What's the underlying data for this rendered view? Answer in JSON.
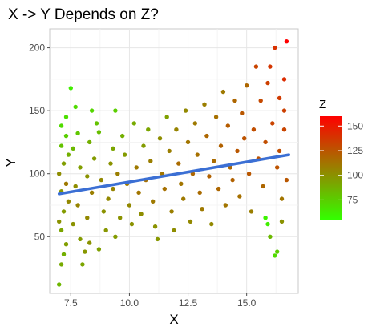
{
  "chart_data": {
    "type": "scatter",
    "title": "X -> Y Depends on Z?",
    "xlabel": "X",
    "ylabel": "Y",
    "xlim": [
      6.6,
      17.2
    ],
    "ylim": [
      5,
      215
    ],
    "x_ticks": [
      7.5,
      10.0,
      12.5,
      15.0
    ],
    "x_tick_labels": [
      "7.5",
      "10.0",
      "12.5",
      "15.0"
    ],
    "y_ticks": [
      50,
      100,
      150,
      200
    ],
    "y_tick_labels": [
      "50",
      "100",
      "150",
      "200"
    ],
    "grid": true,
    "legend": {
      "title": "Z",
      "placement": "right",
      "type": "colorbar",
      "range": [
        55,
        160
      ],
      "ticks": [
        75,
        100,
        125,
        150
      ],
      "tick_labels": [
        "75",
        "100",
        "125",
        "150"
      ],
      "colors": [
        "#33ff00",
        "#ff0000"
      ]
    },
    "trend_line": {
      "x": [
        7.0,
        16.8
      ],
      "y": [
        84,
        115
      ],
      "color": "#3b6fd4"
    },
    "points": [
      [
        7.0,
        12,
        85
      ],
      [
        7.1,
        28,
        90
      ],
      [
        7.2,
        36,
        88
      ],
      [
        7.3,
        44,
        95
      ],
      [
        7.1,
        55,
        92
      ],
      [
        7.0,
        62,
        100
      ],
      [
        7.2,
        70,
        96
      ],
      [
        7.4,
        78,
        104
      ],
      [
        7.1,
        86,
        98
      ],
      [
        7.3,
        92,
        110
      ],
      [
        7.0,
        100,
        102
      ],
      [
        7.2,
        108,
        95
      ],
      [
        7.4,
        115,
        88
      ],
      [
        7.1,
        122,
        80
      ],
      [
        7.3,
        130,
        75
      ],
      [
        7.1,
        138,
        70
      ],
      [
        7.3,
        145,
        68
      ],
      [
        7.5,
        168,
        62
      ],
      [
        7.7,
        153,
        70
      ],
      [
        7.8,
        132,
        78
      ],
      [
        7.6,
        120,
        84
      ],
      [
        7.9,
        105,
        95
      ],
      [
        7.7,
        90,
        102
      ],
      [
        7.8,
        75,
        106
      ],
      [
        7.6,
        60,
        100
      ],
      [
        7.9,
        48,
        96
      ],
      [
        8.1,
        38,
        98
      ],
      [
        8.0,
        28,
        92
      ],
      [
        8.3,
        45,
        100
      ],
      [
        8.2,
        65,
        104
      ],
      [
        8.4,
        85,
        108
      ],
      [
        8.2,
        98,
        100
      ],
      [
        8.5,
        112,
        96
      ],
      [
        8.3,
        125,
        88
      ],
      [
        8.6,
        140,
        80
      ],
      [
        8.4,
        150,
        72
      ],
      [
        8.7,
        133,
        82
      ],
      [
        8.8,
        95,
        104
      ],
      [
        8.9,
        70,
        100
      ],
      [
        9.0,
        55,
        98
      ],
      [
        8.7,
        40,
        94
      ],
      [
        9.1,
        80,
        104
      ],
      [
        9.2,
        108,
        100
      ],
      [
        9.3,
        120,
        92
      ],
      [
        9.4,
        150,
        75
      ],
      [
        9.5,
        100,
        108
      ],
      [
        9.3,
        88,
        106
      ],
      [
        9.6,
        65,
        100
      ],
      [
        9.4,
        50,
        96
      ],
      [
        9.7,
        130,
        88
      ],
      [
        9.8,
        115,
        96
      ],
      [
        9.9,
        92,
        110
      ],
      [
        10.0,
        75,
        104
      ],
      [
        10.1,
        60,
        100
      ],
      [
        10.2,
        140,
        90
      ],
      [
        10.3,
        105,
        110
      ],
      [
        10.4,
        85,
        112
      ],
      [
        10.5,
        68,
        102
      ],
      [
        10.6,
        122,
        96
      ],
      [
        10.7,
        95,
        114
      ],
      [
        10.8,
        135,
        92
      ],
      [
        10.9,
        110,
        108
      ],
      [
        11.0,
        78,
        110
      ],
      [
        11.1,
        58,
        100
      ],
      [
        11.2,
        48,
        98
      ],
      [
        11.3,
        128,
        102
      ],
      [
        11.4,
        100,
        112
      ],
      [
        11.5,
        88,
        114
      ],
      [
        11.6,
        145,
        94
      ],
      [
        11.7,
        118,
        108
      ],
      [
        11.8,
        70,
        108
      ],
      [
        11.9,
        55,
        102
      ],
      [
        12.0,
        135,
        106
      ],
      [
        12.1,
        108,
        116
      ],
      [
        12.2,
        92,
        112
      ],
      [
        12.3,
        80,
        110
      ],
      [
        12.4,
        150,
        104
      ],
      [
        12.5,
        125,
        112
      ],
      [
        12.6,
        62,
        104
      ],
      [
        12.7,
        100,
        118
      ],
      [
        12.8,
        140,
        110
      ],
      [
        12.9,
        115,
        114
      ],
      [
        13.0,
        85,
        116
      ],
      [
        13.1,
        72,
        110
      ],
      [
        13.2,
        155,
        108
      ],
      [
        13.3,
        130,
        118
      ],
      [
        13.4,
        98,
        120
      ],
      [
        13.5,
        60,
        104
      ],
      [
        13.6,
        110,
        116
      ],
      [
        13.7,
        145,
        114
      ],
      [
        13.8,
        88,
        118
      ],
      [
        13.9,
        122,
        120
      ],
      [
        14.0,
        165,
        110
      ],
      [
        14.1,
        75,
        112
      ],
      [
        14.2,
        138,
        122
      ],
      [
        14.3,
        105,
        118
      ],
      [
        14.4,
        95,
        120
      ],
      [
        14.5,
        158,
        118
      ],
      [
        14.6,
        118,
        124
      ],
      [
        14.7,
        82,
        114
      ],
      [
        14.8,
        148,
        124
      ],
      [
        14.9,
        128,
        126
      ],
      [
        15.0,
        170,
        118
      ],
      [
        15.1,
        100,
        124
      ],
      [
        15.2,
        70,
        108
      ],
      [
        15.3,
        135,
        128
      ],
      [
        15.4,
        185,
        132
      ],
      [
        15.5,
        112,
        126
      ],
      [
        15.6,
        158,
        130
      ],
      [
        15.7,
        90,
        118
      ],
      [
        15.8,
        125,
        128
      ],
      [
        15.9,
        172,
        134
      ],
      [
        16.0,
        50,
        84
      ],
      [
        16.1,
        140,
        132
      ],
      [
        16.2,
        200,
        140
      ],
      [
        16.3,
        105,
        126
      ],
      [
        16.4,
        160,
        136
      ],
      [
        16.5,
        80,
        112
      ],
      [
        16.6,
        135,
        132
      ],
      [
        16.7,
        205,
        160
      ],
      [
        16.6,
        175,
        142
      ],
      [
        16.4,
        118,
        128
      ],
      [
        16.2,
        35,
        70
      ],
      [
        16.5,
        62,
        100
      ],
      [
        16.7,
        95,
        124
      ],
      [
        16.3,
        38,
        75
      ],
      [
        16.6,
        150,
        134
      ],
      [
        16.0,
        185,
        138
      ],
      [
        15.8,
        65,
        60
      ],
      [
        15.9,
        60,
        62
      ]
    ]
  }
}
